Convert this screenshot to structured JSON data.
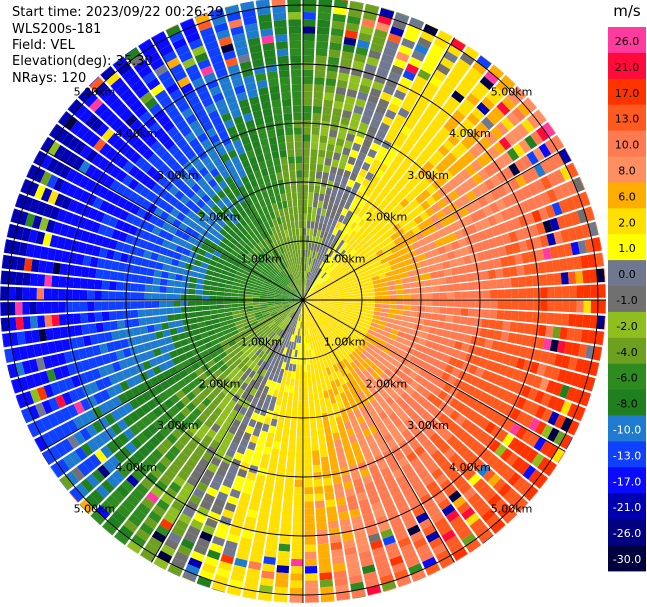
{
  "header": {
    "start_time": "Start time: 2023/09/22 00:26:29",
    "instrument": "WLS200s-181",
    "field": "Field: VEL",
    "elevation": "Elevation(deg): 35.30",
    "nrays": "NRays: 120"
  },
  "chart_data": {
    "type": "heatmap",
    "projection": "polar-ppi",
    "field": "VEL",
    "n_rays": 120,
    "range_rings_km": [
      1.0,
      2.0,
      3.0,
      4.0,
      5.0
    ],
    "range_ring_labels": [
      "1.00km",
      "2.00km",
      "3.00km",
      "4.00km",
      "5.00km"
    ],
    "colorbar": {
      "unit": "m/s",
      "tick_labels": [
        "26.0",
        "21.0",
        "17.0",
        "13.0",
        "10.0",
        "8.0",
        "6.0",
        "2.0",
        "1.0",
        "0.0",
        "-1.0",
        "-2.0",
        "-4.0",
        "-6.0",
        "-8.0",
        "-10.0",
        "-13.0",
        "-17.0",
        "-21.0",
        "-26.0",
        "-30.0"
      ],
      "colors": [
        "#ff3ba0",
        "#ff0a3a",
        "#ff3300",
        "#ff5a1f",
        "#ff7a50",
        "#ff8f60",
        "#ffad00",
        "#ffe000",
        "#ffff00",
        "#707890",
        "#707070",
        "#8fbf1f",
        "#6ea020",
        "#2e8b20",
        "#208020",
        "#1e7bd0",
        "#1040ff",
        "#0a0aff",
        "#0000b0",
        "#000080",
        "#000040"
      ]
    },
    "pattern_summary": {
      "positive_sector": "east / south-east (yellow to orange-red)",
      "negative_sector": "west / north-west (green to blue)",
      "near_zero_band": "grey band between sectors"
    }
  }
}
